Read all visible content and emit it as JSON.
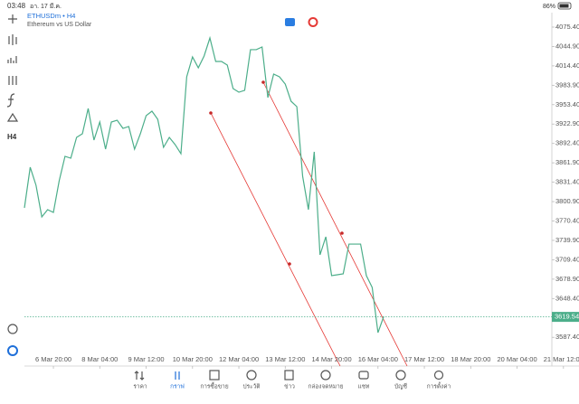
{
  "status_bar": {
    "time": "03:48",
    "date": "อา. 17 มี.ค.",
    "battery": "86%"
  },
  "toolbar": {
    "timeframe": "H4"
  },
  "tabs": [
    "ราคา",
    "กราฟ",
    "การซื้อขาย",
    "ประวัติ",
    "ข่าว",
    "กล่องจดหมาย",
    "แชท",
    "บัญชี",
    "การตั้งค่า"
  ],
  "chart_data": {
    "type": "line",
    "title": "ETHUSDm • H4",
    "subtitle": "Ethereum vs US Dollar",
    "color": "#4cae8a",
    "x": [
      0,
      1,
      2,
      3,
      4,
      5,
      6,
      7,
      8,
      9,
      10,
      11,
      12,
      13,
      14,
      15,
      16,
      17,
      18,
      19,
      20,
      21,
      22,
      23,
      24,
      25,
      26,
      27,
      28,
      29,
      30,
      31,
      32,
      33,
      34,
      35,
      36,
      37,
      38,
      39,
      40,
      41,
      42,
      43,
      44,
      45,
      46,
      47,
      48,
      49,
      50,
      51,
      52,
      53,
      54,
      55,
      56,
      57,
      58,
      59,
      60,
      61,
      62
    ],
    "values": [
      3791.0,
      3855.0,
      3826.6,
      3776.8,
      3788.2,
      3783.9,
      3833.7,
      3872.1,
      3869.2,
      3901.9,
      3907.6,
      3947.4,
      3897.7,
      3926.1,
      3883.4,
      3926.1,
      3928.9,
      3916.1,
      3919.0,
      3883.4,
      3907.6,
      3936.1,
      3943.2,
      3930.4,
      3886.3,
      3901.9,
      3890.6,
      3876.3,
      3997.2,
      4028.5,
      4011.4,
      4029.9,
      4058.3,
      4021.4,
      4021.4,
      4015.7,
      3978.7,
      3973.0,
      3975.9,
      4039.9,
      4039.9,
      4044.1,
      3964.5,
      4001.5,
      3997.2,
      3985.8,
      3958.8,
      3950.3,
      3840.8,
      3788.2,
      3879.2,
      3717.1,
      3745.5,
      3684.4,
      3685.8,
      3687.2,
      3734.1,
      3734.1,
      3734.1,
      3684.4,
      3665.9,
      3594.8,
      3620.4
    ],
    "xlim": [
      0,
      91
    ],
    "xticks": [
      {
        "value": 5,
        "label": "6 Mar 20:00"
      },
      {
        "value": 13,
        "label": "8 Mar 04:00"
      },
      {
        "value": 21,
        "label": "9 Mar 12:00"
      },
      {
        "value": 29,
        "label": "10 Mar 20:00"
      },
      {
        "value": 37,
        "label": "12 Mar 04:00"
      },
      {
        "value": 45,
        "label": "13 Mar 12:00"
      },
      {
        "value": 53,
        "label": "14 Mar 20:00"
      },
      {
        "value": 61,
        "label": "16 Mar 04:00"
      },
      {
        "value": 69,
        "label": "17 Mar 12:00"
      },
      {
        "value": 77,
        "label": "18 Mar 20:00"
      },
      {
        "value": 85,
        "label": "20 Mar 04:00"
      },
      {
        "value": 93,
        "label": "21 Mar 12:00"
      }
    ],
    "ylim": [
      3560.7,
      4089.6
    ],
    "yticks": [
      {
        "value": 4075.4,
        "label": "4075.40"
      },
      {
        "value": 4044.9,
        "label": "4044.90"
      },
      {
        "value": 4014.4,
        "label": "4014.40"
      },
      {
        "value": 3983.9,
        "label": "3983.90"
      },
      {
        "value": 3953.4,
        "label": "3953.40"
      },
      {
        "value": 3922.9,
        "label": "3922.90"
      },
      {
        "value": 3892.4,
        "label": "3892.40"
      },
      {
        "value": 3861.9,
        "label": "3861.90"
      },
      {
        "value": 3831.4,
        "label": "3831.40"
      },
      {
        "value": 3800.9,
        "label": "3800.90"
      },
      {
        "value": 3770.4,
        "label": "3770.40"
      },
      {
        "value": 3739.9,
        "label": "3739.90"
      },
      {
        "value": 3709.4,
        "label": "3709.40"
      },
      {
        "value": 3678.9,
        "label": "3678.90"
      },
      {
        "value": 3648.4,
        "label": "3648.40"
      },
      {
        "value": 3587.4,
        "label": "3587.40"
      }
    ],
    "current_price": 3619.54,
    "current_price_color": "#4cae8a"
  }
}
